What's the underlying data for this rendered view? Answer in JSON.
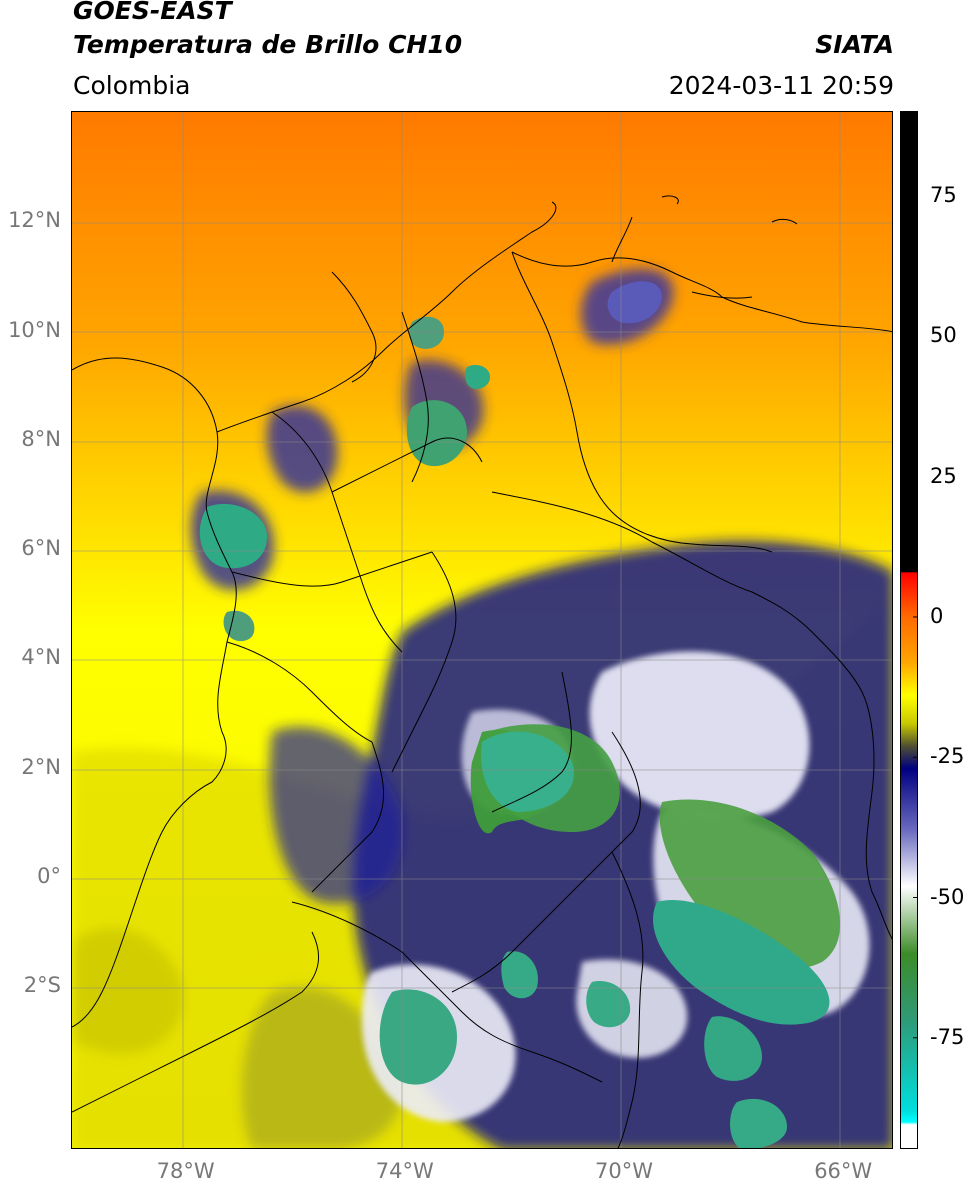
{
  "header": {
    "satellite": "GOES-EAST",
    "product": "Temperatura de Brillo CH10",
    "institution": "SIATA",
    "region": "Colombia",
    "timestamp": "2024-03-11 20:59"
  },
  "map": {
    "lon_range": [
      -80,
      -65
    ],
    "lat_range": [
      -5,
      14
    ],
    "lon_ticks": [
      {
        "value": -78,
        "label": "78°W"
      },
      {
        "value": -74,
        "label": "74°W"
      },
      {
        "value": -70,
        "label": "70°W"
      },
      {
        "value": -66,
        "label": "66°W"
      }
    ],
    "lat_ticks": [
      {
        "value": 12,
        "label": "12°N"
      },
      {
        "value": 10,
        "label": "10°N"
      },
      {
        "value": 8,
        "label": "8°N"
      },
      {
        "value": 6,
        "label": "6°N"
      },
      {
        "value": 4,
        "label": "4°N"
      },
      {
        "value": 2,
        "label": "2°N"
      },
      {
        "value": 0,
        "label": "0°"
      },
      {
        "value": -2,
        "label": "2°S"
      }
    ]
  },
  "colorbar": {
    "range": [
      -95,
      90
    ],
    "ticks": [
      {
        "value": 75,
        "label": "75"
      },
      {
        "value": 50,
        "label": "50"
      },
      {
        "value": 25,
        "label": "25"
      },
      {
        "value": 0,
        "label": "0"
      },
      {
        "value": -25,
        "label": "-25"
      },
      {
        "value": -50,
        "label": "-50"
      },
      {
        "value": -75,
        "label": "-75"
      }
    ],
    "stops": [
      {
        "value": 90,
        "color": "#000000"
      },
      {
        "value": 8,
        "color": "#000000"
      },
      {
        "value": 7.9,
        "color": "#ff0000"
      },
      {
        "value": 0,
        "color": "#ff6a00"
      },
      {
        "value": -8,
        "color": "#ffa500"
      },
      {
        "value": -14,
        "color": "#ffff00"
      },
      {
        "value": -19,
        "color": "#c8c800"
      },
      {
        "value": -23,
        "color": "#505030"
      },
      {
        "value": -27,
        "color": "#000080"
      },
      {
        "value": -38,
        "color": "#6a6ac0"
      },
      {
        "value": -48,
        "color": "#ffffff"
      },
      {
        "value": -60,
        "color": "#3c8c28"
      },
      {
        "value": -72,
        "color": "#2e9b78"
      },
      {
        "value": -88,
        "color": "#00dede"
      },
      {
        "value": -90,
        "color": "#00ffff"
      },
      {
        "value": -90.5,
        "color": "#ffffff"
      },
      {
        "value": -95,
        "color": "#ffffff"
      }
    ]
  }
}
